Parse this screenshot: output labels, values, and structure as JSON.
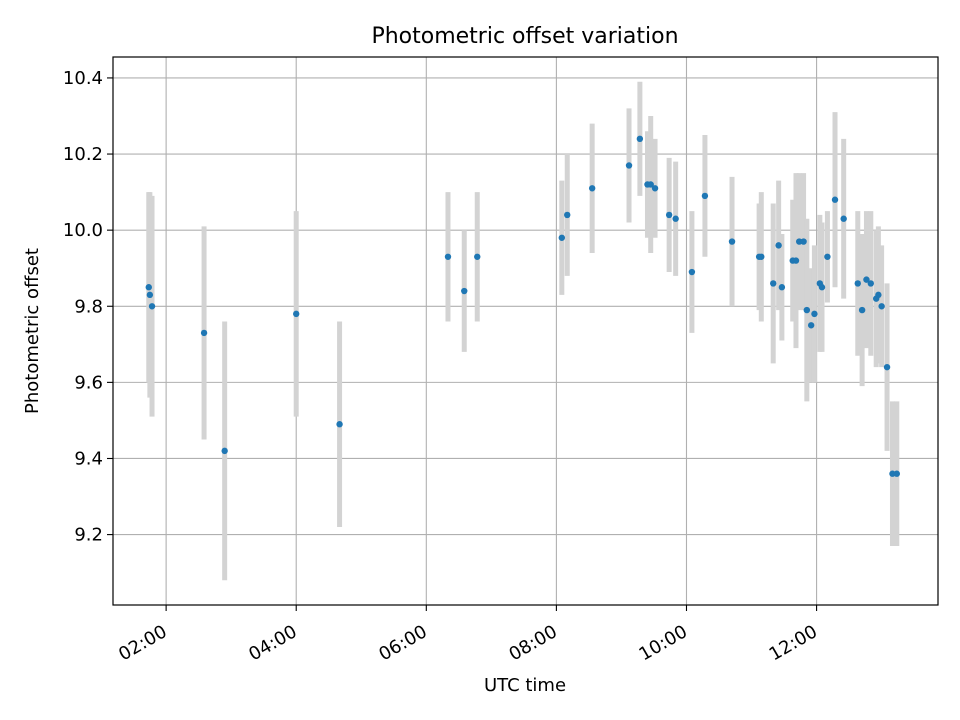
{
  "chart_data": {
    "type": "scatter",
    "title": "Photometric offset variation",
    "xlabel": "UTC time",
    "ylabel": "Photometric offset",
    "grid": true,
    "x_ticks": [
      "02:00",
      "04:00",
      "06:00",
      "08:00",
      "10:00",
      "12:00"
    ],
    "x_tick_hours": [
      2,
      4,
      6,
      8,
      10,
      12
    ],
    "y_ticks": [
      "9.2",
      "9.4",
      "9.6",
      "9.8",
      "10.0",
      "10.2",
      "10.4"
    ],
    "y_tick_values": [
      9.2,
      9.4,
      9.6,
      9.8,
      10.0,
      10.2,
      10.4
    ],
    "xlim": [
      "01:11",
      "13:52"
    ],
    "ylim": [
      9.015,
      10.455
    ],
    "colors": {
      "marker": "#1f77b4",
      "error_bar": "#d3d3d3",
      "grid": "#b0b0b0"
    },
    "series": [
      {
        "x": [
          "01:44",
          "01:45",
          "01:47",
          "02:35",
          "02:54",
          "04:00",
          "04:40",
          "06:20",
          "06:35",
          "06:47",
          "08:05",
          "08:10",
          "08:33",
          "09:07",
          "09:17",
          "09:24",
          "09:27",
          "09:31",
          "09:44",
          "09:50",
          "10:05",
          "10:17",
          "10:42",
          "11:07",
          "11:09",
          "11:20",
          "11:25",
          "11:28",
          "11:38",
          "11:41",
          "11:44",
          "11:48",
          "11:51",
          "11:55",
          "11:58",
          "12:03",
          "12:05",
          "12:10",
          "12:17",
          "12:25",
          "12:38",
          "12:42",
          "12:46",
          "12:50",
          "12:55",
          "12:57",
          "13:00",
          "13:05",
          "13:10",
          "13:14"
        ],
        "y": [
          9.85,
          9.83,
          9.8,
          9.73,
          9.42,
          9.78,
          9.49,
          9.93,
          9.84,
          9.93,
          9.98,
          10.04,
          10.11,
          10.17,
          10.24,
          10.12,
          10.12,
          10.11,
          10.04,
          10.03,
          9.89,
          10.09,
          9.97,
          9.93,
          9.93,
          9.86,
          9.96,
          9.85,
          9.92,
          9.92,
          9.97,
          9.97,
          9.79,
          9.75,
          9.78,
          9.86,
          9.85,
          9.93,
          10.08,
          10.03,
          9.86,
          9.79,
          9.87,
          9.86,
          9.82,
          9.83,
          9.8,
          9.64,
          9.36,
          9.36
        ],
        "err": [
          0.25,
          0.27,
          0.29,
          0.28,
          0.34,
          0.27,
          0.27,
          0.17,
          0.16,
          0.17,
          0.15,
          0.16,
          0.17,
          0.15,
          0.15,
          0.14,
          0.18,
          0.13,
          0.15,
          0.15,
          0.16,
          0.16,
          0.17,
          0.14,
          0.17,
          0.21,
          0.17,
          0.14,
          0.16,
          0.23,
          0.18,
          0.18,
          0.24,
          0.15,
          0.18,
          0.18,
          0.17,
          0.12,
          0.23,
          0.21,
          0.19,
          0.2,
          0.18,
          0.19,
          0.18,
          0.18,
          0.16,
          0.22,
          0.19,
          0.19
        ]
      }
    ]
  }
}
